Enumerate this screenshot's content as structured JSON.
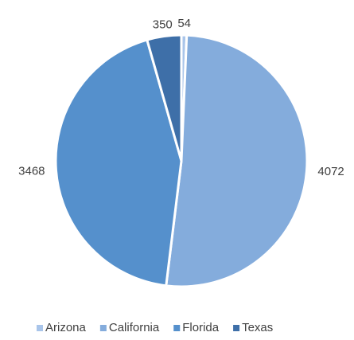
{
  "chart_data": {
    "type": "pie",
    "categories": [
      "Arizona",
      "California",
      "Florida",
      "Texas"
    ],
    "values": [
      54,
      4072,
      3468,
      350
    ],
    "colors": [
      "#a9c5ea",
      "#84acdc",
      "#5590cc",
      "#3e6fa8"
    ],
    "legend": "bottom"
  }
}
